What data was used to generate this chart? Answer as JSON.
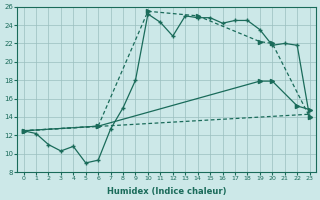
{
  "xlabel": "Humidex (Indice chaleur)",
  "bg_color": "#cce8e8",
  "grid_color": "#9bbfbf",
  "line_color": "#1a6b5a",
  "xlim": [
    -0.5,
    23.5
  ],
  "ylim": [
    8,
    26
  ],
  "xticks": [
    0,
    1,
    2,
    3,
    4,
    5,
    6,
    7,
    8,
    9,
    10,
    11,
    12,
    13,
    14,
    15,
    16,
    17,
    18,
    19,
    20,
    21,
    22,
    23
  ],
  "yticks": [
    8,
    10,
    12,
    14,
    16,
    18,
    20,
    22,
    24,
    26
  ],
  "curve1_x": [
    0,
    1,
    2,
    3,
    4,
    5,
    6,
    7,
    8,
    9,
    10,
    11,
    12,
    13,
    14,
    15,
    16,
    17,
    18,
    19,
    20,
    21,
    22,
    23
  ],
  "curve1_y": [
    12.5,
    12.2,
    11.0,
    10.3,
    10.8,
    9.0,
    9.3,
    12.7,
    15.0,
    18.0,
    25.2,
    24.3,
    22.8,
    25.0,
    24.8,
    24.8,
    24.2,
    24.5,
    24.5,
    23.5,
    21.8,
    22.0,
    21.8,
    14.0
  ],
  "curve2_x": [
    0,
    6,
    10,
    14,
    19,
    20,
    23
  ],
  "curve2_y": [
    12.5,
    13.0,
    25.5,
    25.0,
    22.2,
    22.0,
    14.0
  ],
  "curve3_x": [
    0,
    6,
    19,
    20,
    22,
    23
  ],
  "curve3_y": [
    12.5,
    13.0,
    17.9,
    17.9,
    15.2,
    14.8
  ],
  "curve4_x": [
    0,
    23
  ],
  "curve4_y": [
    12.5,
    14.3
  ]
}
